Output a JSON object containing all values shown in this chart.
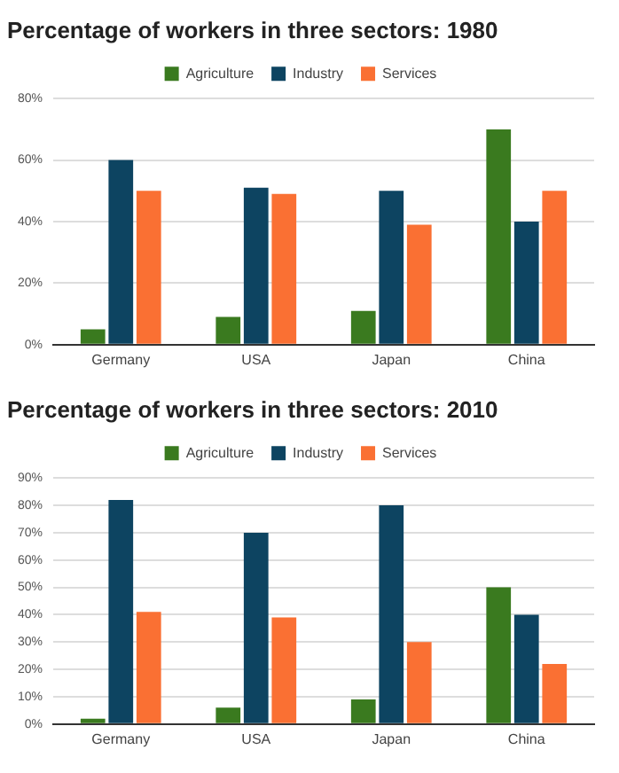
{
  "chart_data": [
    {
      "type": "bar",
      "title": "Percentage of workers in three sectors: 1980",
      "categories": [
        "Germany",
        "USA",
        "Japan",
        "China"
      ],
      "series": [
        {
          "name": "Agriculture",
          "color": "#3a7a1f",
          "values": [
            5,
            9,
            11,
            70
          ]
        },
        {
          "name": "Industry",
          "color": "#0d4461",
          "values": [
            60,
            51,
            50,
            40
          ]
        },
        {
          "name": "Services",
          "color": "#fa7033",
          "values": [
            50,
            49,
            39,
            50
          ]
        }
      ],
      "ylim": [
        0,
        80
      ],
      "yticks": [
        {
          "value": 0,
          "label": "0%"
        },
        {
          "value": 20,
          "label": "20%"
        },
        {
          "value": 40,
          "label": "40%"
        },
        {
          "value": 60,
          "label": "60%"
        },
        {
          "value": 80,
          "label": "80%"
        }
      ],
      "grid": "y",
      "legend": "top"
    },
    {
      "type": "bar",
      "title": "Percentage of workers in three sectors: 2010",
      "categories": [
        "Germany",
        "USA",
        "Japan",
        "China"
      ],
      "series": [
        {
          "name": "Agriculture",
          "color": "#3a7a1f",
          "values": [
            2,
            6,
            9,
            50
          ]
        },
        {
          "name": "Industry",
          "color": "#0d4461",
          "values": [
            82,
            70,
            80,
            40
          ]
        },
        {
          "name": "Services",
          "color": "#fa7033",
          "values": [
            41,
            39,
            30,
            22
          ]
        }
      ],
      "ylim": [
        0,
        90
      ],
      "yticks": [
        {
          "value": 0,
          "label": "0%"
        },
        {
          "value": 10,
          "label": "10%"
        },
        {
          "value": 20,
          "label": "20%"
        },
        {
          "value": 30,
          "label": "30%"
        },
        {
          "value": 40,
          "label": "40%"
        },
        {
          "value": 50,
          "label": "50%"
        },
        {
          "value": 60,
          "label": "60%"
        },
        {
          "value": 70,
          "label": "70%"
        },
        {
          "value": 80,
          "label": "80%"
        },
        {
          "value": 90,
          "label": "90%"
        }
      ],
      "grid": "y",
      "legend": "top"
    }
  ]
}
